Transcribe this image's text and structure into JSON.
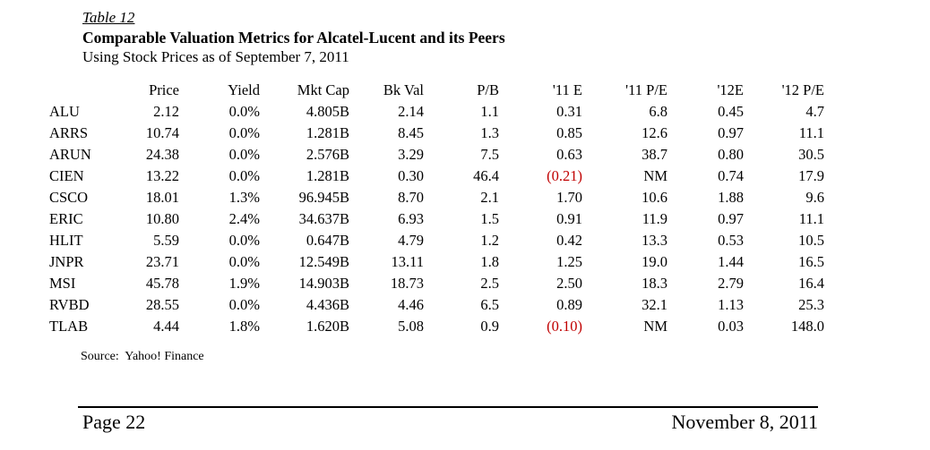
{
  "header": {
    "table_label": "Table 12",
    "title": "Comparable Valuation Metrics for Alcatel-Lucent and its Peers",
    "subtitle": "Using Stock Prices as of September 7, 2011"
  },
  "table": {
    "headers": [
      "",
      "Price",
      "Yield",
      "Mkt Cap",
      "Bk Val",
      "P/B",
      "'11 E",
      "'11 P/E",
      "'12E",
      "'12 P/E"
    ],
    "rows": [
      [
        "ALU",
        "2.12",
        "0.0%",
        "4.805B",
        "2.14",
        "1.1",
        "0.31",
        "6.8",
        "0.45",
        "4.7"
      ],
      [
        "ARRS",
        "10.74",
        "0.0%",
        "1.281B",
        "8.45",
        "1.3",
        "0.85",
        "12.6",
        "0.97",
        "11.1"
      ],
      [
        "ARUN",
        "24.38",
        "0.0%",
        "2.576B",
        "3.29",
        "7.5",
        "0.63",
        "38.7",
        "0.80",
        "30.5"
      ],
      [
        "CIEN",
        "13.22",
        "0.0%",
        "1.281B",
        "0.30",
        "46.4",
        "(0.21)",
        "NM",
        "0.74",
        "17.9"
      ],
      [
        "CSCO",
        "18.01",
        "1.3%",
        "96.945B",
        "8.70",
        "2.1",
        "1.70",
        "10.6",
        "1.88",
        "9.6"
      ],
      [
        "ERIC",
        "10.80",
        "2.4%",
        "34.637B",
        "6.93",
        "1.5",
        "0.91",
        "11.9",
        "0.97",
        "11.1"
      ],
      [
        "HLIT",
        "5.59",
        "0.0%",
        "0.647B",
        "4.79",
        "1.2",
        "0.42",
        "13.3",
        "0.53",
        "10.5"
      ],
      [
        "JNPR",
        "23.71",
        "0.0%",
        "12.549B",
        "13.11",
        "1.8",
        "1.25",
        "19.0",
        "1.44",
        "16.5"
      ],
      [
        "MSI",
        "45.78",
        "1.9%",
        "14.903B",
        "18.73",
        "2.5",
        "2.50",
        "18.3",
        "2.79",
        "16.4"
      ],
      [
        "RVBD",
        "28.55",
        "0.0%",
        "4.436B",
        "4.46",
        "6.5",
        "0.89",
        "32.1",
        "1.13",
        "25.3"
      ],
      [
        "TLAB",
        "4.44",
        "1.8%",
        "1.620B",
        "5.08",
        "0.9",
        "(0.10)",
        "NM",
        "0.03",
        "148.0"
      ]
    ],
    "text_color": "#000000",
    "negative_color": "#c00000"
  },
  "source_note": "Source:  Yahoo! Finance",
  "footer": {
    "page_label": "Page 22",
    "date": "November 8, 2011"
  }
}
